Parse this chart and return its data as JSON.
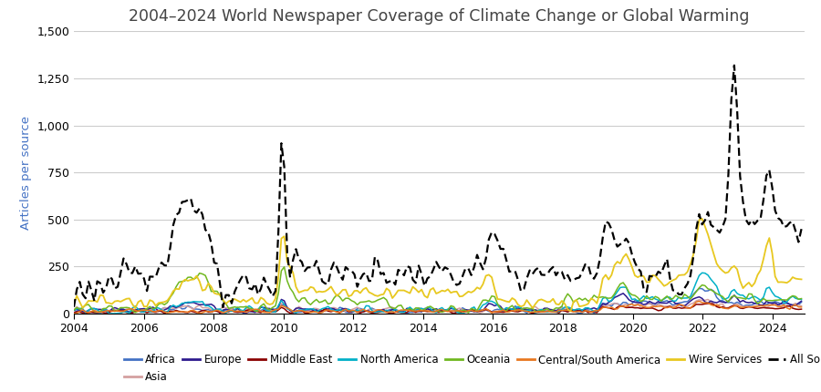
{
  "title": "2004–2024 World Newspaper Coverage of Climate Change or Global Warming",
  "ylabel": "Articles per source",
  "ylim": [
    0,
    1500
  ],
  "yticks": [
    0,
    250,
    500,
    750,
    1000,
    1250,
    1500
  ],
  "xlim": [
    2004.0,
    2024.92
  ],
  "xticks": [
    2004,
    2006,
    2008,
    2010,
    2012,
    2014,
    2016,
    2018,
    2020,
    2022,
    2024
  ],
  "colors": {
    "Africa": "#4472c4",
    "Asia": "#d4a0a0",
    "Europe": "#2e1a8e",
    "Middle East": "#8b0000",
    "North America": "#00b0c8",
    "Oceania": "#70b820",
    "Central/South America": "#e87820",
    "Wire Services": "#e8c820",
    "All Sources Combined": "#000000"
  },
  "background_color": "#ffffff",
  "grid_color": "#cccccc",
  "title_color": "#444444",
  "ylabel_color": "#4472c4",
  "title_fontsize": 12.5,
  "label_fontsize": 9,
  "legend_fontsize": 8.5
}
